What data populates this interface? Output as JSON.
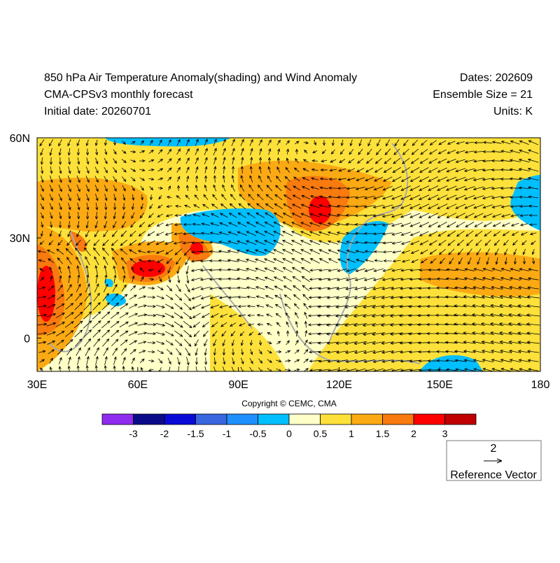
{
  "header": {
    "title_left": [
      "850 hPa Air Temperature Anomaly(shading) and Wind Anomaly",
      "CMA-CPSv3 monthly forecast",
      "Initial date: 20260701"
    ],
    "title_right": [
      "Dates: 202609",
      "Ensemble Size = 21",
      "Units: K"
    ]
  },
  "map": {
    "lon_range": [
      30,
      180
    ],
    "lat_range": [
      -10,
      60
    ],
    "x_ticks": [
      {
        "value": 30,
        "label": "30E"
      },
      {
        "value": 60,
        "label": "60E"
      },
      {
        "value": 90,
        "label": "90E"
      },
      {
        "value": 120,
        "label": "120E"
      },
      {
        "value": 150,
        "label": "150E"
      },
      {
        "value": 180,
        "label": "180"
      }
    ],
    "y_ticks": [
      {
        "value": 60,
        "label": "60N"
      },
      {
        "value": 30,
        "label": "30N"
      },
      {
        "value": 0,
        "label": "0"
      }
    ]
  },
  "colorbar": {
    "colors": [
      "#8f2cf0",
      "#0b0b8a",
      "#0a0ad6",
      "#3a66e0",
      "#1e90ff",
      "#00bfff",
      "#ffffc8",
      "#fde13a",
      "#fbaa13",
      "#f97a0e",
      "#ff0000",
      "#c00000"
    ],
    "labels": [
      "-3",
      "-2",
      "-1.5",
      "-1",
      "-0.5",
      "0",
      "0.5",
      "1",
      "1.5",
      "2",
      "3"
    ]
  },
  "copyright": "Copyright © CEMC, CMA",
  "reference": {
    "magnitude": "2",
    "label": "Reference Vector"
  }
}
